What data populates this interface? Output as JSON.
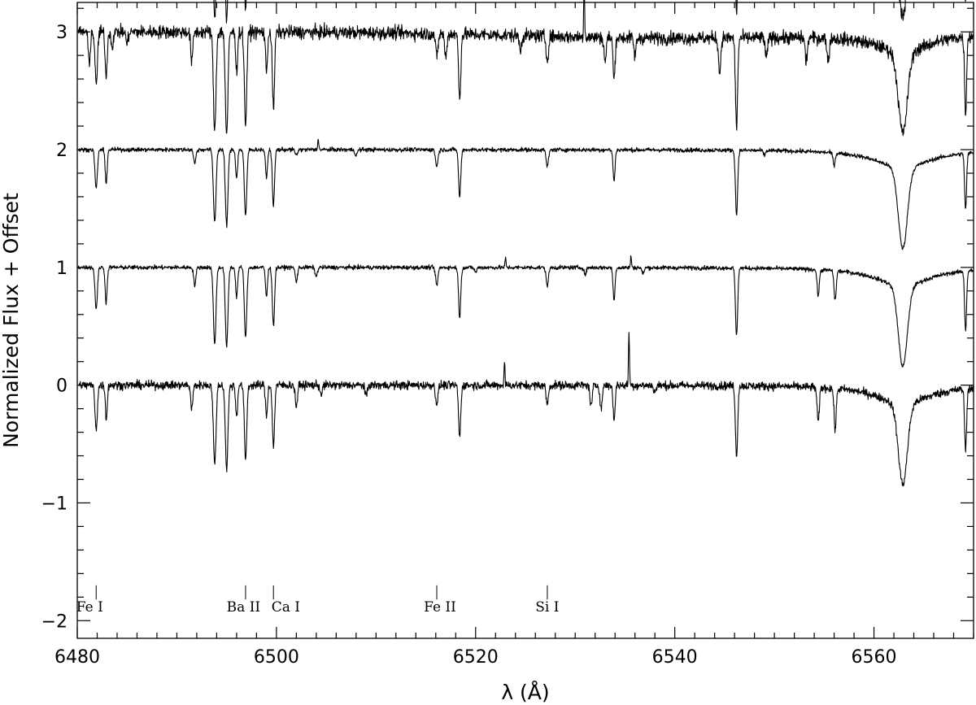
{
  "chart_data": {
    "type": "line",
    "title": "",
    "xlabel": "λ (Å)",
    "ylabel": "Normalized Flux + Offset",
    "xlim": [
      6480,
      6570
    ],
    "ylim": [
      -2.15,
      3.25
    ],
    "grid": false,
    "x_ticks": [
      6480,
      6500,
      6520,
      6540,
      6560
    ],
    "y_ticks": [
      -2,
      -1,
      0,
      1,
      2,
      3
    ],
    "x_tick_labels": [
      "6480",
      "6500",
      "6520",
      "6540",
      "6560"
    ],
    "y_tick_labels": [
      "−2",
      "−1",
      "0",
      "1",
      "2",
      "3"
    ],
    "series": [
      {
        "offset": 3,
        "noise": 0.028,
        "continuum_droop": 0.06,
        "depth_scale": 1.35,
        "extra_lines": [
          [
            6481.0,
            0.08
          ],
          [
            6482.0,
            0.1
          ],
          [
            6484.0,
            0.1
          ],
          [
            6486.2,
            0.12
          ],
          [
            6490.3,
            0.3
          ],
          [
            6491.0,
            0.14
          ],
          [
            6492.5,
            0.14
          ],
          [
            6511.2,
            0.1
          ],
          [
            6529.8,
            0.06
          ],
          [
            6543.3,
            0.5
          ],
          [
            6547.6,
            0.4
          ],
          [
            6552.2,
            0.35
          ],
          [
            6556.7,
            0.2
          ],
          [
            6565.5,
            0.15
          ],
          [
            6567.5,
            0.12
          ]
        ],
        "spikes": [
          [
            6505.4,
            0.15
          ],
          [
            6511.0,
            0.12
          ],
          [
            6529.9,
            0.35
          ]
        ]
      },
      {
        "offset": 2,
        "noise": 0.028,
        "continuum_droop": 0.05,
        "depth_scale": 1.3,
        "extra_lines": [
          [
            6481.2,
            0.25
          ],
          [
            6483.5,
            0.12
          ],
          [
            6485.0,
            0.1
          ],
          [
            6491.5,
            0.25
          ],
          [
            6517.0,
            0.2
          ],
          [
            6524.5,
            0.12
          ],
          [
            6533.0,
            0.2
          ],
          [
            6536.0,
            0.15
          ],
          [
            6544.5,
            0.3
          ],
          [
            6549.2,
            0.18
          ],
          [
            6553.2,
            0.2
          ],
          [
            6555.4,
            0.2
          ]
        ],
        "spikes": [
          [
            6530.9,
            0.45
          ]
        ]
      },
      {
        "offset": 1,
        "noise": 0.009,
        "continuum_droop": 0.0,
        "depth_scale": 0.95,
        "extra_lines": [
          [
            6491.8,
            0.12
          ],
          [
            6502.0,
            0.05
          ],
          [
            6508.0,
            0.05
          ],
          [
            6549.0,
            0.04
          ],
          [
            6556.0,
            0.1
          ]
        ],
        "spikes": [
          [
            6504.2,
            0.1
          ]
        ]
      },
      {
        "offset": 0,
        "noise": 0.009,
        "continuum_droop": 0.0,
        "depth_scale": 1.0,
        "extra_lines": [
          [
            6491.8,
            0.15
          ],
          [
            6502.0,
            0.12
          ],
          [
            6504.0,
            0.08
          ],
          [
            6520.0,
            0.04
          ],
          [
            6531.0,
            0.06
          ],
          [
            6536.8,
            0.05
          ],
          [
            6554.4,
            0.22
          ],
          [
            6556.1,
            0.25
          ]
        ],
        "spikes": [
          [
            6523.0,
            0.08
          ],
          [
            6535.6,
            0.1
          ]
        ]
      },
      {
        "offset": -1,
        "noise": 0.018,
        "continuum_droop": 0.0,
        "depth_scale": 1.05,
        "extra_lines": [
          [
            6491.5,
            0.2
          ],
          [
            6502.0,
            0.18
          ],
          [
            6504.5,
            0.08
          ],
          [
            6509.0,
            0.1
          ],
          [
            6531.6,
            0.18
          ],
          [
            6532.6,
            0.2
          ],
          [
            6538.0,
            0.06
          ],
          [
            6554.4,
            0.3
          ],
          [
            6556.1,
            0.35
          ]
        ],
        "spikes": [
          [
            6482.8,
            0.08
          ],
          [
            6522.9,
            0.2
          ],
          [
            6535.4,
            0.45
          ]
        ]
      }
    ],
    "common_lines": [
      [
        6481.9,
        0.35,
        0.12
      ],
      [
        6482.9,
        0.3,
        0.1
      ],
      [
        6493.8,
        0.65,
        0.13
      ],
      [
        6495.0,
        0.68,
        0.13
      ],
      [
        6496.0,
        0.25,
        0.1
      ],
      [
        6496.9,
        0.6,
        0.12
      ],
      [
        6499.0,
        0.25,
        0.1
      ],
      [
        6499.7,
        0.5,
        0.11
      ],
      [
        6516.1,
        0.15,
        0.12
      ],
      [
        6518.4,
        0.42,
        0.11
      ],
      [
        6527.2,
        0.15,
        0.12
      ],
      [
        6533.9,
        0.28,
        0.1
      ],
      [
        6546.2,
        0.58,
        0.11
      ],
      [
        6569.2,
        0.5,
        0.1
      ]
    ],
    "h_alpha": {
      "center": 6562.9,
      "depth": 0.68,
      "core_width": 0.45,
      "wing_depth": 0.16,
      "wing_width": 3.2
    },
    "line_ids": [
      {
        "label": "Fe I",
        "wavelength": 6481.9
      },
      {
        "label": "Ba II",
        "wavelength": 6496.9
      },
      {
        "label": "Ca I",
        "wavelength": 6499.7
      },
      {
        "label": "Fe II",
        "wavelength": 6516.1
      },
      {
        "label": "Si I",
        "wavelength": 6527.2
      }
    ],
    "line_id_text": [
      {
        "text": "Fe I",
        "x": 6479.9
      },
      {
        "text": "Ba II",
        "x": 6495.0
      },
      {
        "text": "Ca I",
        "x": 6499.5
      },
      {
        "text": "Fe II",
        "x": 6514.8
      },
      {
        "text": "Si I",
        "x": 6526.0
      }
    ],
    "line_marker_range": [
      -1.82,
      -1.7
    ],
    "line_id_y": -1.88
  }
}
